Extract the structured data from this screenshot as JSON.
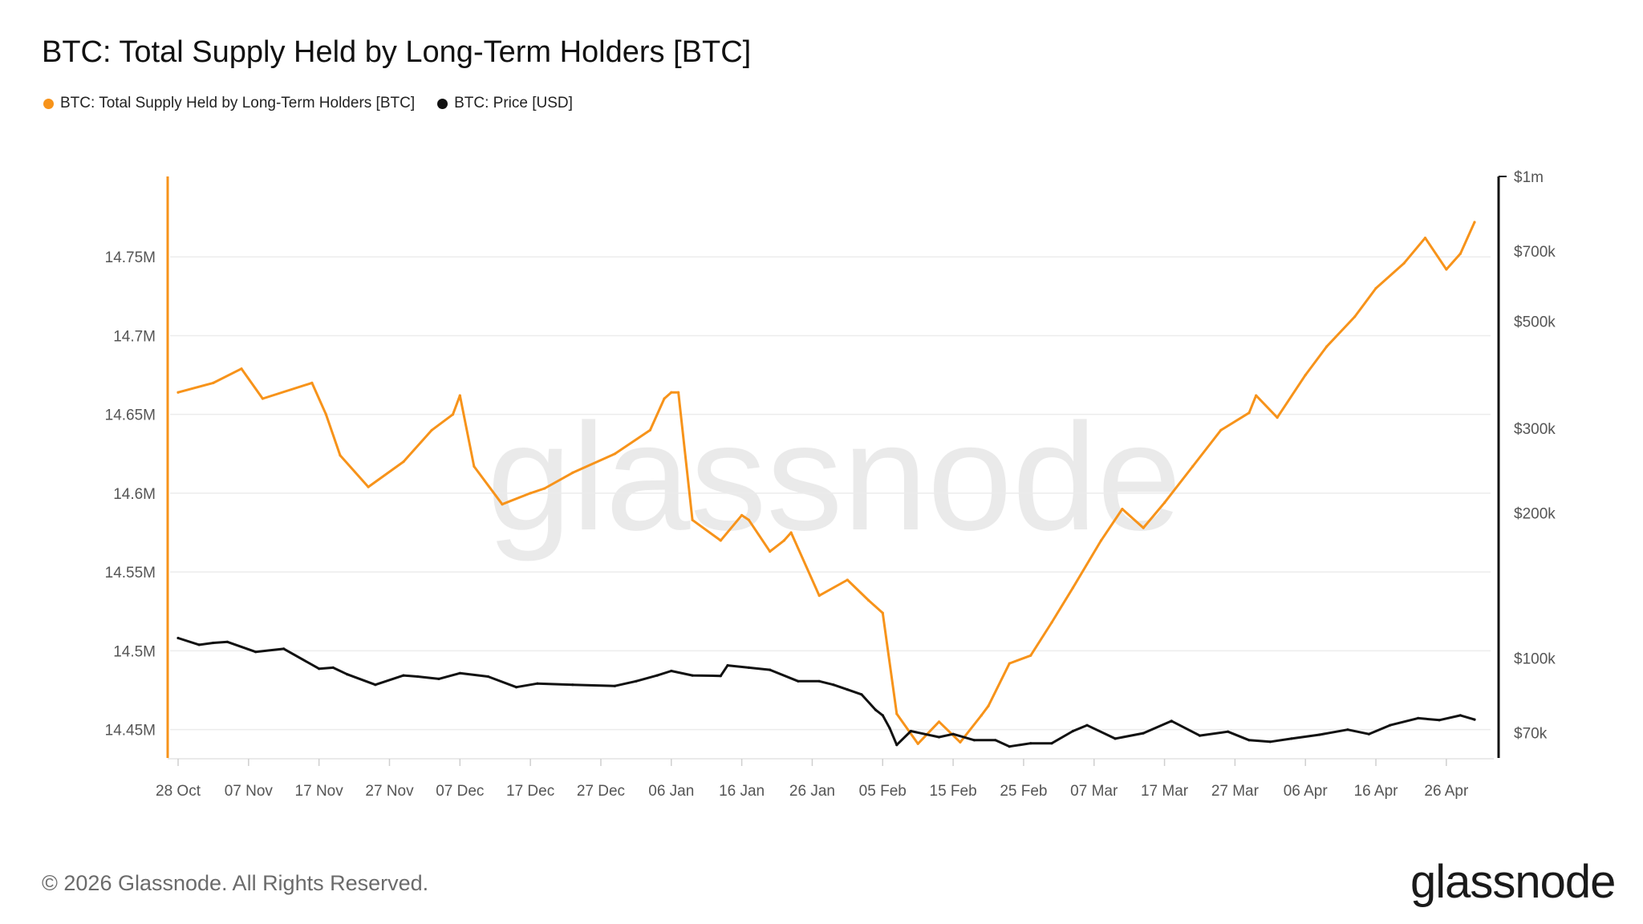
{
  "title": "BTC: Total Supply Held by Long-Term Holders [BTC]",
  "legend": [
    {
      "label": "BTC: Total Supply Held by Long-Term Holders [BTC]",
      "color": "#f7931a"
    },
    {
      "label": "BTC: Price [USD]",
      "color": "#111111"
    }
  ],
  "watermark": "glassnode",
  "footer": {
    "copyright": "© 2026 Glassnode. All Rights Reserved.",
    "brand": "glassnode"
  },
  "chart_data": {
    "type": "line",
    "grid": true,
    "legend_placement": "top-left",
    "x_ticks": [
      "28 Oct",
      "07 Nov",
      "17 Nov",
      "27 Nov",
      "07 Dec",
      "17 Dec",
      "27 Dec",
      "06 Jan",
      "16 Jan",
      "26 Jan",
      "05 Feb",
      "15 Feb",
      "25 Feb",
      "07 Mar",
      "17 Mar",
      "27 Mar",
      "06 Apr",
      "16 Apr",
      "26 Apr"
    ],
    "x_start": "28 Oct",
    "x_end": "30 Apr",
    "y_left": {
      "ticks": [
        14450000,
        14500000,
        14550000,
        14600000,
        14650000,
        14700000,
        14750000
      ],
      "tick_labels": [
        "14.45M",
        "14.5M",
        "14.55M",
        "14.6M",
        "14.65M",
        "14.7M",
        "14.75M"
      ],
      "range": [
        14432000,
        14801000
      ]
    },
    "y_right": {
      "scale": "log",
      "ticks": [
        70000,
        100000,
        200000,
        300000,
        500000,
        700000,
        1000000
      ],
      "tick_labels": [
        "$70k",
        "$100k",
        "$200k",
        "$300k",
        "$500k",
        "$700k",
        "$1m"
      ],
      "range": [
        62000,
        1000000
      ]
    },
    "series": [
      {
        "name": "BTC: Total Supply Held by Long-Term Holders [BTC]",
        "axis": "left",
        "color": "#f7931a",
        "x": [
          "28 Oct",
          "02 Nov",
          "06 Nov",
          "09 Nov",
          "16 Nov",
          "18 Nov",
          "20 Nov",
          "24 Nov",
          "29 Nov",
          "03 Dec",
          "06 Dec",
          "07 Dec",
          "09 Dec",
          "13 Dec",
          "17 Dec",
          "19 Dec",
          "23 Dec",
          "29 Dec",
          "03 Jan",
          "05 Jan",
          "06 Jan",
          "07 Jan",
          "09 Jan",
          "13 Jan",
          "16 Jan",
          "17 Jan",
          "20 Jan",
          "22 Jan",
          "23 Jan",
          "27 Jan",
          "31 Jan",
          "03 Feb",
          "05 Feb",
          "07 Feb",
          "10 Feb",
          "13 Feb",
          "16 Feb",
          "19 Feb",
          "20 Feb",
          "23 Feb",
          "26 Feb",
          "01 Mar",
          "04 Mar",
          "08 Mar",
          "11 Mar",
          "14 Mar",
          "17 Mar",
          "21 Mar",
          "25 Mar",
          "29 Mar",
          "30 Mar",
          "02 Apr",
          "06 Apr",
          "09 Apr",
          "13 Apr",
          "16 Apr",
          "20 Apr",
          "23 Apr",
          "26 Apr",
          "28 Apr",
          "30 Apr"
        ],
        "values": [
          14664000,
          14670000,
          14679000,
          14660000,
          14670000,
          14650000,
          14624000,
          14604000,
          14620000,
          14640000,
          14650000,
          14662000,
          14617000,
          14593000,
          14600000,
          14603000,
          14613000,
          14625000,
          14640000,
          14660000,
          14664000,
          14664000,
          14583000,
          14570000,
          14586000,
          14583000,
          14563000,
          14570000,
          14575000,
          14535000,
          14545000,
          14532000,
          14524000,
          14460000,
          14441000,
          14455000,
          14442000,
          14459000,
          14465000,
          14492000,
          14497000,
          14518000,
          14540000,
          14570000,
          14590000,
          14578000,
          14594000,
          14617000,
          14640000,
          14651000,
          14662000,
          14648000,
          14675000,
          14693000,
          14712000,
          14730000,
          14746000,
          14762000,
          14742000,
          14752000,
          14772000
        ]
      },
      {
        "name": "BTC: Price [USD]",
        "axis": "right",
        "color": "#111111",
        "x": [
          "28 Oct",
          "31 Oct",
          "02 Nov",
          "04 Nov",
          "08 Nov",
          "12 Nov",
          "17 Nov",
          "19 Nov",
          "21 Nov",
          "25 Nov",
          "29 Nov",
          "01 Dec",
          "04 Dec",
          "07 Dec",
          "11 Dec",
          "15 Dec",
          "18 Dec",
          "23 Dec",
          "29 Dec",
          "01 Jan",
          "04 Jan",
          "06 Jan",
          "09 Jan",
          "13 Jan",
          "14 Jan",
          "17 Jan",
          "20 Jan",
          "24 Jan",
          "27 Jan",
          "29 Jan",
          "31 Jan",
          "02 Feb",
          "04 Feb",
          "05 Feb",
          "06 Feb",
          "07 Feb",
          "09 Feb",
          "13 Feb",
          "15 Feb",
          "18 Feb",
          "21 Feb",
          "23 Feb",
          "26 Feb",
          "01 Mar",
          "04 Mar",
          "06 Mar",
          "10 Mar",
          "14 Mar",
          "18 Mar",
          "22 Mar",
          "26 Mar",
          "29 Mar",
          "01 Apr",
          "04 Apr",
          "08 Apr",
          "12 Apr",
          "15 Apr",
          "18 Apr",
          "22 Apr",
          "25 Apr",
          "28 Apr",
          "30 Apr"
        ],
        "values": [
          110000,
          106500,
          107500,
          108000,
          103000,
          104500,
          95000,
          95500,
          92500,
          88000,
          92000,
          91500,
          90500,
          93000,
          91500,
          87000,
          88500,
          88000,
          87500,
          89500,
          92000,
          94000,
          92000,
          91800,
          96500,
          95500,
          94500,
          89500,
          89500,
          88000,
          86000,
          84000,
          78000,
          76000,
          71500,
          66000,
          70500,
          68500,
          69500,
          67500,
          67500,
          65500,
          66500,
          66500,
          70500,
          72500,
          68000,
          69800,
          74000,
          69000,
          70300,
          67500,
          67000,
          68000,
          69300,
          71000,
          69500,
          72500,
          75000,
          74300,
          76000,
          74500
        ]
      }
    ]
  }
}
